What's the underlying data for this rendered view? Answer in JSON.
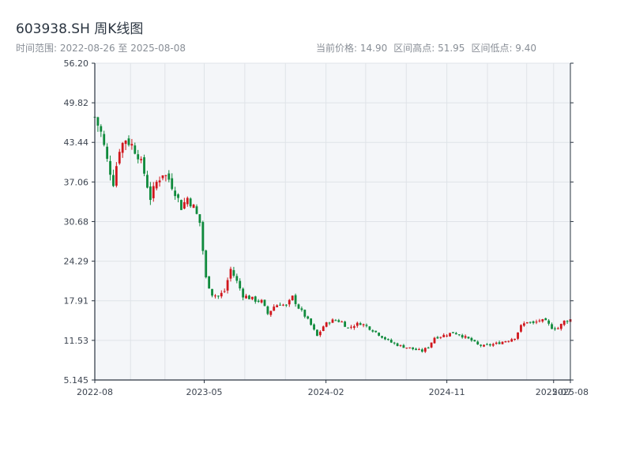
{
  "header": {
    "title": "603938.SH 周K线图",
    "subtitle": "时间范围: 2022-08-26 至 2025-08-08",
    "stat_current": "当前价格: 14.90",
    "stat_high": "区间高点: 51.95",
    "stat_low": "区间低点: 9.40"
  },
  "colors": {
    "up": "#d0161c",
    "down": "#0f8a3c",
    "plot_bg": "#f4f6f9",
    "grid": "#dfe3e8",
    "axis": "#2a3440"
  },
  "chart_data": {
    "type": "candlestick",
    "title": "603938.SH 周K线图",
    "ylim": [
      5.145,
      56.2
    ],
    "yticks": [
      "56.20",
      "49.82",
      "43.44",
      "37.06",
      "30.68",
      "24.29",
      "17.91",
      "11.53",
      "5.145"
    ],
    "xlim": [
      "2022-08-26",
      "2025-08-08"
    ],
    "xticks": [
      {
        "date": "2022-08-26",
        "label": "2022-08"
      },
      {
        "date": "2023-05-01",
        "label": "2023-05"
      },
      {
        "date": "2024-02-01",
        "label": "2024-02"
      },
      {
        "date": "2024-11-01",
        "label": "2024-11"
      },
      {
        "date": "2025-07-01",
        "label": "2025-07"
      },
      {
        "date": "2025-08-08",
        "label": "2025-08"
      }
    ],
    "current_price": 14.9,
    "range_high": 51.95,
    "range_low": 9.4,
    "close_points": [
      [
        "2022-08-26",
        47.5
      ],
      [
        "2022-09-09",
        45.0
      ],
      [
        "2022-09-23",
        40.5
      ],
      [
        "2022-10-07",
        37.0
      ],
      [
        "2022-10-21",
        42.5
      ],
      [
        "2022-11-04",
        44.0
      ],
      [
        "2022-11-18",
        43.0
      ],
      [
        "2022-12-02",
        41.5
      ],
      [
        "2022-12-16",
        38.5
      ],
      [
        "2022-12-30",
        34.5
      ],
      [
        "2023-01-13",
        37.0
      ],
      [
        "2023-01-27",
        38.5
      ],
      [
        "2023-02-10",
        37.5
      ],
      [
        "2023-02-24",
        35.5
      ],
      [
        "2023-03-10",
        33.0
      ],
      [
        "2023-03-24",
        34.5
      ],
      [
        "2023-04-07",
        33.0
      ],
      [
        "2023-04-21",
        30.5
      ],
      [
        "2023-05-05",
        21.5
      ],
      [
        "2023-05-19",
        19.0
      ],
      [
        "2023-06-02",
        18.6
      ],
      [
        "2023-06-16",
        19.5
      ],
      [
        "2023-06-30",
        23.0
      ],
      [
        "2023-07-14",
        21.0
      ],
      [
        "2023-07-28",
        18.8
      ],
      [
        "2023-08-11",
        18.4
      ],
      [
        "2023-08-25",
        18.0
      ],
      [
        "2023-09-08",
        17.8
      ],
      [
        "2023-09-22",
        15.8
      ],
      [
        "2023-10-06",
        17.0
      ],
      [
        "2023-10-20",
        17.5
      ],
      [
        "2023-11-03",
        17.0
      ],
      [
        "2023-11-17",
        18.5
      ],
      [
        "2023-12-01",
        16.8
      ],
      [
        "2023-12-15",
        15.5
      ],
      [
        "2023-12-29",
        14.0
      ],
      [
        "2024-01-12",
        12.2
      ],
      [
        "2024-01-26",
        13.8
      ],
      [
        "2024-02-09",
        14.6
      ],
      [
        "2024-02-23",
        14.8
      ],
      [
        "2024-03-08",
        14.5
      ],
      [
        "2024-03-22",
        13.5
      ],
      [
        "2024-04-05",
        14.0
      ],
      [
        "2024-04-19",
        14.3
      ],
      [
        "2024-05-03",
        13.8
      ],
      [
        "2024-05-17",
        13.2
      ],
      [
        "2024-05-31",
        12.5
      ],
      [
        "2024-06-14",
        11.8
      ],
      [
        "2024-06-28",
        11.2
      ],
      [
        "2024-07-12",
        10.8
      ],
      [
        "2024-07-26",
        10.5
      ],
      [
        "2024-08-09",
        10.3
      ],
      [
        "2024-08-23",
        10.0
      ],
      [
        "2024-09-06",
        9.8
      ],
      [
        "2024-09-20",
        10.5
      ],
      [
        "2024-10-04",
        12.0
      ],
      [
        "2024-10-18",
        12.2
      ],
      [
        "2024-11-01",
        12.5
      ],
      [
        "2024-11-15",
        12.8
      ],
      [
        "2024-11-29",
        12.5
      ],
      [
        "2024-12-13",
        12.0
      ],
      [
        "2024-12-27",
        11.5
      ],
      [
        "2025-01-10",
        10.8
      ],
      [
        "2025-01-24",
        10.6
      ],
      [
        "2025-02-07",
        10.8
      ],
      [
        "2025-02-21",
        11.0
      ],
      [
        "2025-03-07",
        11.3
      ],
      [
        "2025-03-21",
        11.6
      ],
      [
        "2025-04-04",
        12.0
      ],
      [
        "2025-04-18",
        13.8
      ],
      [
        "2025-05-02",
        14.6
      ],
      [
        "2025-05-16",
        14.2
      ],
      [
        "2025-05-30",
        14.8
      ],
      [
        "2025-06-13",
        14.5
      ],
      [
        "2025-06-27",
        13.6
      ],
      [
        "2025-07-11",
        13.5
      ],
      [
        "2025-07-25",
        14.6
      ],
      [
        "2025-08-08",
        14.9
      ]
    ]
  }
}
